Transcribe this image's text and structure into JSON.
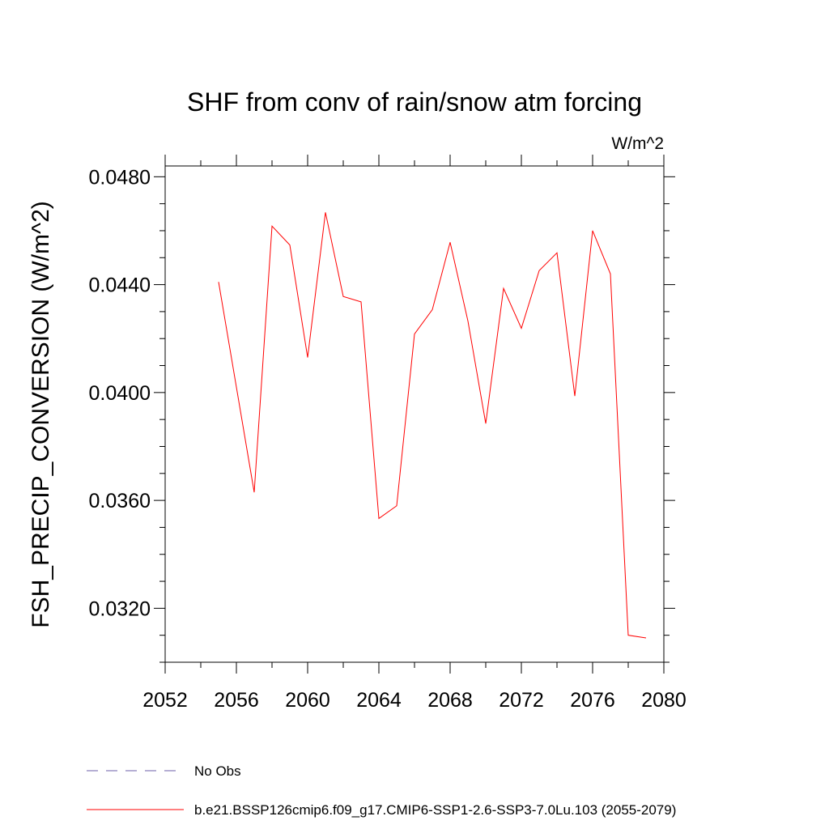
{
  "chart_data": {
    "type": "line",
    "title": "SHF from conv of rain/snow atm forcing",
    "units": "W/m^2",
    "ylabel": "FSH_PRECIP_CONVERSION  (W/m^2)",
    "xlabel": "",
    "xlim": [
      2052,
      2080
    ],
    "ylim": [
      0.03,
      0.0484
    ],
    "x_ticks": [
      2052,
      2056,
      2060,
      2064,
      2068,
      2072,
      2076,
      2080
    ],
    "x_tick_labels": [
      "2052",
      "2056",
      "2060",
      "2064",
      "2068",
      "2072",
      "2076",
      "2080"
    ],
    "y_ticks": [
      0.032,
      0.036,
      0.04,
      0.044,
      0.048
    ],
    "y_tick_labels": [
      "0.0320",
      "0.0360",
      "0.0400",
      "0.0440",
      "0.0480"
    ],
    "grid": false,
    "legend_position": "bottom",
    "series": [
      {
        "name": "No Obs",
        "color": "#6e5fa8",
        "style": "dashed",
        "x": [],
        "values": []
      },
      {
        "name": "b.e21.BSSP126cmip6.f09_g17.CMIP6-SSP1-2.6-SSP3-7.0Lu.103 (2055-2079)",
        "color": "#ff0000",
        "style": "solid",
        "x": [
          2055,
          2056,
          2057,
          2058,
          2059,
          2060,
          2061,
          2062,
          2063,
          2064,
          2065,
          2066,
          2067,
          2068,
          2069,
          2070,
          2071,
          2072,
          2073,
          2074,
          2075,
          2076,
          2077,
          2078,
          2079
        ],
        "values": [
          0.0441,
          0.0402,
          0.0363,
          0.04617,
          0.04547,
          0.0413,
          0.04668,
          0.04356,
          0.04336,
          0.03533,
          0.0358,
          0.04217,
          0.04307,
          0.04557,
          0.04265,
          0.03885,
          0.04386,
          0.04238,
          0.04452,
          0.04518,
          0.03987,
          0.046,
          0.0444,
          0.031,
          0.0309
        ]
      }
    ]
  }
}
